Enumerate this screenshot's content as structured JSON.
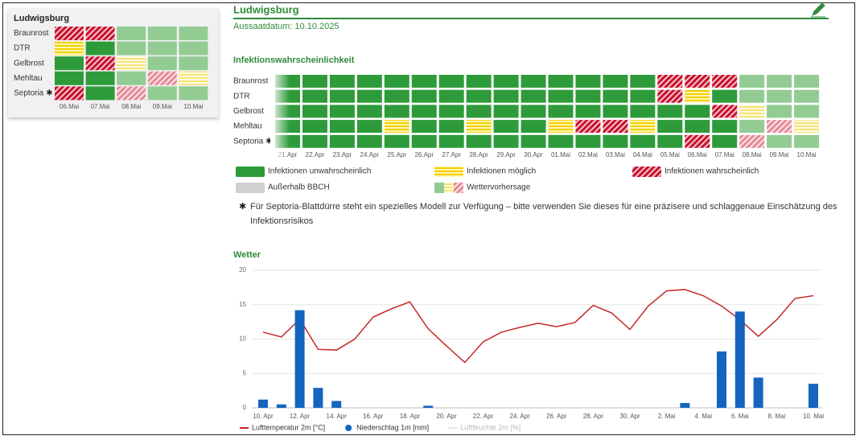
{
  "card": {
    "title": "Ludwigsburg",
    "diseases": [
      "Braunrost",
      "DTR",
      "Gelbrost",
      "Mehltau",
      "Septoria"
    ],
    "dates": [
      "06.Mai",
      "07.Mai",
      "08.Mai",
      "09.Mai",
      "10.Mai"
    ],
    "forecast_from": "08.Mai",
    "cells": [
      [
        2,
        2,
        0,
        0,
        0
      ],
      [
        1,
        0,
        0,
        0,
        0
      ],
      [
        0,
        2,
        1,
        0,
        0
      ],
      [
        0,
        0,
        0,
        2,
        1
      ],
      [
        2,
        0,
        2,
        0,
        0
      ]
    ]
  },
  "header": {
    "title": "Ludwigsburg",
    "sowing": "Aussaatdatum: 10.10.2025"
  },
  "infection": {
    "title": "Infektionswahrscheinlichkeit",
    "diseases": [
      "Braunrost",
      "DTR",
      "Gelbrost",
      "Mehltau",
      "Septoria"
    ],
    "dates": [
      "21.Apr",
      "22.Apr",
      "23.Apr",
      "24.Apr",
      "25.Apr",
      "26.Apr",
      "27.Apr",
      "28.Apr",
      "29.Apr",
      "30.Apr",
      "01.Mai",
      "02.Mai",
      "03.Mai",
      "04.Mai",
      "05.Mai",
      "06.Mai",
      "07.Mai",
      "08.Mai",
      "09.Mai",
      "10.Mai"
    ],
    "forecast_from": "08.Mai",
    "cells": [
      [
        0,
        0,
        0,
        0,
        0,
        0,
        0,
        0,
        0,
        0,
        0,
        0,
        0,
        0,
        2,
        2,
        2,
        0,
        0,
        0
      ],
      [
        0,
        0,
        0,
        0,
        0,
        0,
        0,
        0,
        0,
        0,
        0,
        0,
        0,
        0,
        2,
        1,
        0,
        0,
        0,
        0
      ],
      [
        0,
        0,
        0,
        0,
        0,
        0,
        0,
        0,
        0,
        0,
        0,
        0,
        0,
        0,
        0,
        0,
        2,
        1,
        0,
        0
      ],
      [
        0,
        0,
        0,
        0,
        1,
        0,
        0,
        1,
        0,
        0,
        1,
        2,
        2,
        1,
        0,
        0,
        0,
        0,
        2,
        1
      ],
      [
        0,
        0,
        0,
        0,
        0,
        0,
        0,
        0,
        0,
        0,
        0,
        0,
        0,
        0,
        0,
        2,
        0,
        2,
        0,
        0
      ]
    ]
  },
  "legend": [
    "Infektionen unwahrscheinlich",
    "Infektionen möglich",
    "Infektionen wahrscheinlich",
    "Außerhalb BBCH",
    "Wettervorhersage"
  ],
  "note": {
    "symbol": "✱",
    "applies_to": "Septoria",
    "text": "Für Septoria-Blattdürre steht ein spezielles Modell zur Verfügung – bitte verwenden Sie dieses für eine präzisere und schlaggenaue Einschätzung des Infektionsrisikos"
  },
  "chart_data": {
    "type": "combo",
    "title": "Wetter",
    "categories": [
      "10. Apr",
      null,
      "12. Apr",
      null,
      "14. Apr",
      null,
      "16. Apr",
      null,
      "18. Apr",
      null,
      "20. Apr",
      null,
      "22. Apr",
      null,
      "24. Apr",
      null,
      "26. Apr",
      null,
      "28. Apr",
      null,
      "30. Apr",
      null,
      "2. Mai",
      null,
      "4. Mai",
      null,
      "6. Mai",
      null,
      "8. Mai",
      null,
      "10. Mai"
    ],
    "series": [
      {
        "name": "Lufttemperatur 2m [°C]",
        "type": "line",
        "color": "#c62828",
        "values": [
          11.0,
          10.3,
          12.9,
          8.5,
          8.4,
          10.0,
          13.2,
          14.4,
          15.4,
          11.5,
          9.0,
          6.6,
          9.6,
          11.0,
          11.7,
          12.3,
          11.8,
          12.4,
          14.9,
          13.8,
          11.4,
          14.8,
          17.0,
          17.2,
          16.3,
          14.8,
          12.8,
          10.4,
          12.8,
          15.9,
          16.3
        ]
      },
      {
        "name": "Niederschlag 1m [mm]",
        "type": "bar",
        "color": "#1565c0",
        "values": [
          1.2,
          0.5,
          14.2,
          2.9,
          1.0,
          0,
          0,
          0,
          0,
          0.3,
          0,
          0,
          0,
          0,
          0,
          0,
          0,
          0,
          0,
          0,
          0,
          0,
          0,
          0.7,
          0,
          8.2,
          14.0,
          4.4,
          0,
          0,
          3.5
        ]
      }
    ],
    "hidden_series": [
      "Luftfeuchte 2m [%]"
    ],
    "ylim": [
      0,
      20
    ],
    "yticks": [
      0,
      5,
      10,
      15,
      20
    ],
    "grid": true
  }
}
